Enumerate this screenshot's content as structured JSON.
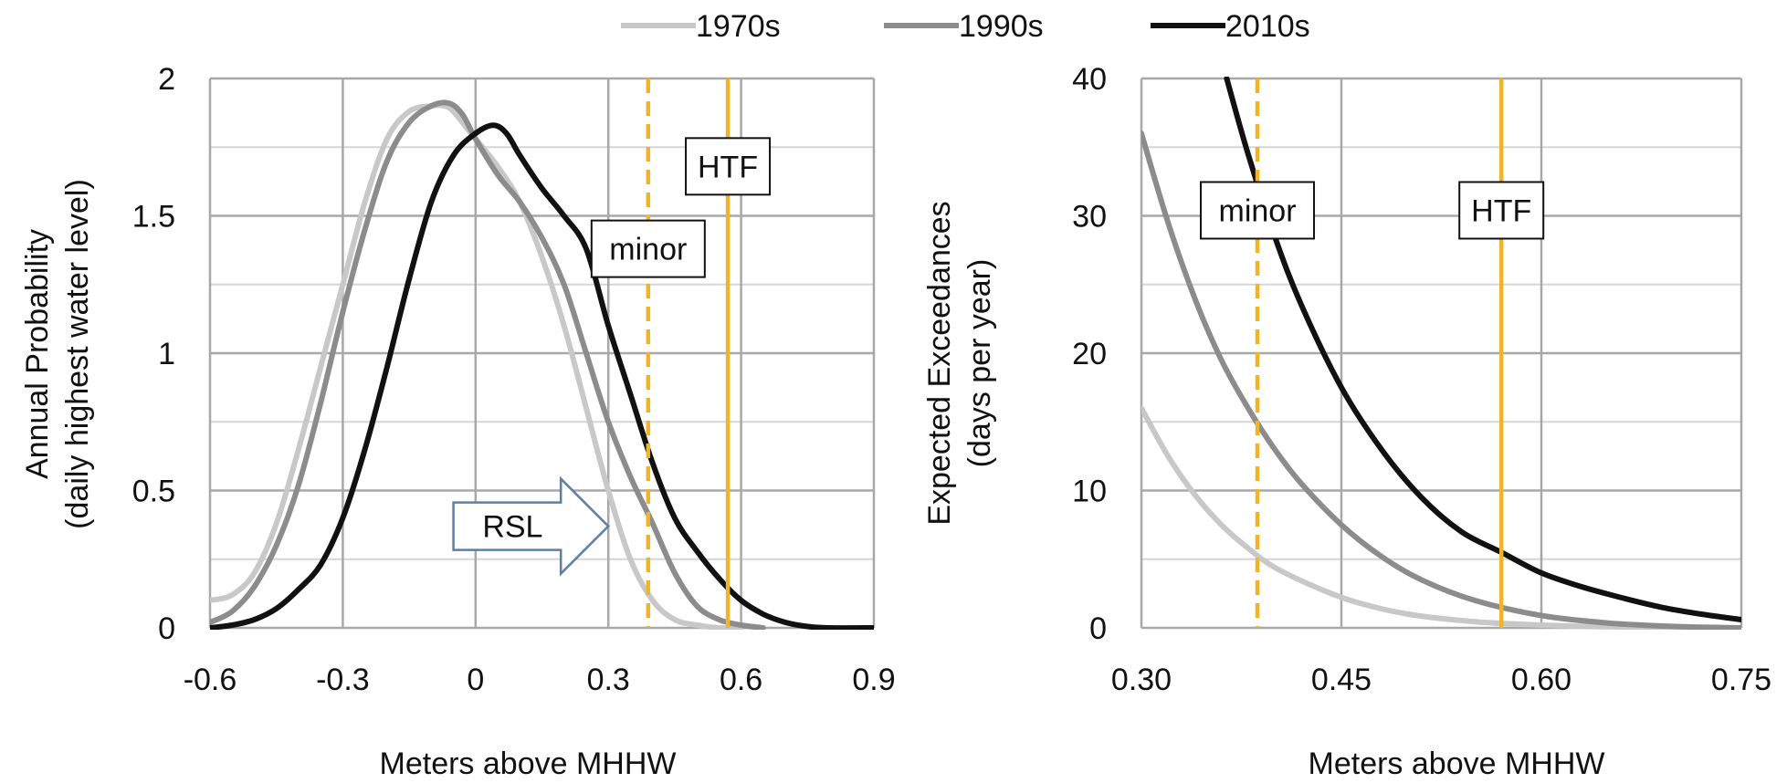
{
  "legend": {
    "entries": [
      {
        "label": "1970s",
        "color": "#c8c8c8"
      },
      {
        "label": "1990s",
        "color": "#8c8c8c"
      },
      {
        "label": "2010s",
        "color": "#111111"
      }
    ]
  },
  "threshold_colors": {
    "minor": "#f0b429",
    "htf": "#f0b429"
  },
  "chart_data": [
    {
      "type": "line",
      "xlabel": "Meters above MHHW",
      "ylabel": [
        "Annual Probability",
        "(daily highest water level)"
      ],
      "xlim": [
        -0.6,
        0.9
      ],
      "ylim": [
        0,
        2
      ],
      "xticks": [
        -0.6,
        -0.3,
        0,
        0.3,
        0.6,
        0.9
      ],
      "xtick_labels": [
        "-0.6",
        "-0.3",
        "0",
        "0.3",
        "0.6",
        "0.9"
      ],
      "yticks": [
        0,
        0.5,
        1,
        1.5,
        2
      ],
      "ytick_labels": [
        "0",
        "0.5",
        "1",
        "1.5",
        "2"
      ],
      "grid": true,
      "series": [
        {
          "name": "1970s",
          "color": "#c8c8c8",
          "x": [
            -0.6,
            -0.55,
            -0.5,
            -0.45,
            -0.4,
            -0.35,
            -0.3,
            -0.25,
            -0.2,
            -0.15,
            -0.1,
            -0.07,
            -0.05,
            -0.02,
            0.0,
            0.05,
            0.1,
            0.15,
            0.2,
            0.25,
            0.3,
            0.35,
            0.4,
            0.45,
            0.5,
            0.55,
            0.6
          ],
          "y": [
            0.1,
            0.12,
            0.2,
            0.38,
            0.65,
            0.95,
            1.25,
            1.55,
            1.78,
            1.88,
            1.9,
            1.9,
            1.88,
            1.82,
            1.78,
            1.68,
            1.55,
            1.35,
            1.1,
            0.8,
            0.5,
            0.25,
            0.1,
            0.03,
            0.01,
            0.0,
            0.0
          ]
        },
        {
          "name": "1990s",
          "color": "#8c8c8c",
          "x": [
            -0.6,
            -0.55,
            -0.5,
            -0.45,
            -0.4,
            -0.35,
            -0.3,
            -0.25,
            -0.2,
            -0.15,
            -0.1,
            -0.06,
            -0.03,
            0.0,
            0.05,
            0.1,
            0.15,
            0.2,
            0.25,
            0.3,
            0.35,
            0.4,
            0.45,
            0.5,
            0.55,
            0.6,
            0.65
          ],
          "y": [
            0.02,
            0.06,
            0.15,
            0.3,
            0.52,
            0.82,
            1.15,
            1.45,
            1.7,
            1.84,
            1.9,
            1.91,
            1.87,
            1.78,
            1.65,
            1.55,
            1.42,
            1.25,
            1.0,
            0.75,
            0.55,
            0.38,
            0.2,
            0.08,
            0.03,
            0.01,
            0.0
          ]
        },
        {
          "name": "2010s",
          "color": "#111111",
          "x": [
            -0.6,
            -0.55,
            -0.5,
            -0.45,
            -0.4,
            -0.35,
            -0.3,
            -0.25,
            -0.2,
            -0.15,
            -0.1,
            -0.05,
            0.0,
            0.04,
            0.07,
            0.1,
            0.15,
            0.2,
            0.25,
            0.3,
            0.35,
            0.4,
            0.45,
            0.5,
            0.55,
            0.6,
            0.65,
            0.7,
            0.75,
            0.8,
            0.9
          ],
          "y": [
            0.0,
            0.01,
            0.03,
            0.07,
            0.14,
            0.23,
            0.4,
            0.65,
            0.95,
            1.27,
            1.55,
            1.72,
            1.8,
            1.83,
            1.8,
            1.72,
            1.6,
            1.5,
            1.38,
            1.1,
            0.85,
            0.6,
            0.4,
            0.28,
            0.18,
            0.1,
            0.05,
            0.02,
            0.005,
            0.0,
            0.0
          ]
        }
      ],
      "thresholds": [
        {
          "label": "minor",
          "x": 0.39,
          "style": "dashed"
        },
        {
          "label": "HTF",
          "x": 0.57,
          "style": "solid"
        }
      ],
      "annotation": {
        "label": "RSL",
        "from_x": -0.05,
        "to_x": 0.3,
        "y": 0.37
      }
    },
    {
      "type": "line",
      "xlabel": "Meters above MHHW",
      "ylabel": [
        "Expected Exceedances",
        "(days per year)"
      ],
      "xlim": [
        0.3,
        0.75
      ],
      "ylim": [
        0,
        40
      ],
      "xticks": [
        0.3,
        0.45,
        0.6,
        0.75
      ],
      "xtick_labels": [
        "0.30",
        "0.45",
        "0.60",
        "0.75"
      ],
      "yticks": [
        0,
        10,
        20,
        30,
        40
      ],
      "ytick_labels": [
        "0",
        "10",
        "20",
        "30",
        "40"
      ],
      "grid": true,
      "series": [
        {
          "name": "1970s",
          "color": "#c8c8c8",
          "x": [
            0.3,
            0.32,
            0.34,
            0.36,
            0.38,
            0.4,
            0.43,
            0.46,
            0.5,
            0.55,
            0.6,
            0.65,
            0.7,
            0.75
          ],
          "y": [
            16,
            12.5,
            9.7,
            7.5,
            5.8,
            4.4,
            3.0,
            1.9,
            1.0,
            0.45,
            0.2,
            0.08,
            0.03,
            0.0
          ]
        },
        {
          "name": "1990s",
          "color": "#8c8c8c",
          "x": [
            0.3,
            0.32,
            0.34,
            0.36,
            0.38,
            0.4,
            0.42,
            0.45,
            0.48,
            0.51,
            0.55,
            0.6,
            0.65,
            0.7,
            0.75
          ],
          "y": [
            36,
            29.5,
            24,
            19.5,
            16,
            13,
            10.5,
            7.5,
            5.2,
            3.5,
            2.0,
            0.9,
            0.35,
            0.1,
            0.0
          ]
        },
        {
          "name": "2010s",
          "color": "#111111",
          "x": [
            0.364,
            0.38,
            0.4,
            0.42,
            0.45,
            0.48,
            0.51,
            0.54,
            0.57,
            0.6,
            0.63,
            0.66,
            0.69,
            0.72,
            0.75
          ],
          "y": [
            40,
            34.5,
            28.5,
            23.5,
            17.5,
            13,
            9.5,
            7.0,
            5.5,
            4.0,
            3.0,
            2.2,
            1.5,
            1.0,
            0.6
          ]
        }
      ],
      "thresholds": [
        {
          "label": "minor",
          "x": 0.387,
          "style": "dashed"
        },
        {
          "label": "HTF",
          "x": 0.57,
          "style": "solid"
        }
      ]
    }
  ]
}
